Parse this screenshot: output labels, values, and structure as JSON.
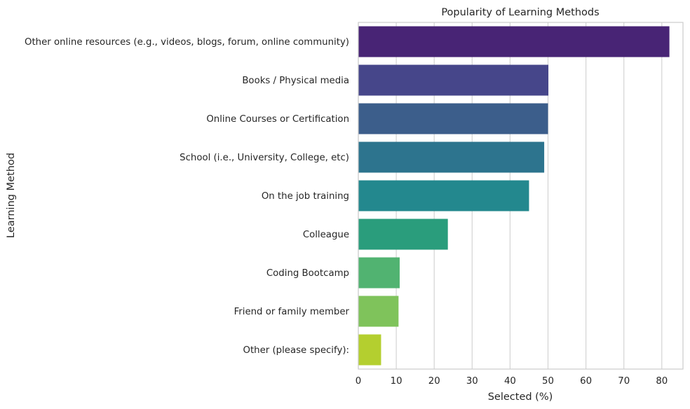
{
  "chart_data": {
    "type": "bar",
    "orientation": "horizontal",
    "title": "Popularity of Learning Methods",
    "xlabel": "Selected (%)",
    "ylabel": "Learning Method",
    "xlim": [
      0,
      85.5
    ],
    "x_ticks": [
      0,
      10,
      20,
      30,
      40,
      50,
      60,
      70,
      80
    ],
    "grid": "vertical",
    "legend": "none",
    "categories": [
      "Other online resources (e.g., videos, blogs, forum, online community)",
      "Books / Physical media",
      "Online Courses or Certification",
      "School (i.e., University, College, etc)",
      "On the job training",
      "Colleague",
      "Coding Bootcamp",
      "Friend or family member",
      "Other (please specify):"
    ],
    "values": [
      82,
      50.1,
      50,
      49,
      45,
      23.6,
      10.9,
      10.6,
      6
    ],
    "colors": [
      "#482475",
      "#46468a",
      "#3c5e8b",
      "#2d748e",
      "#23888e",
      "#2a9d7c",
      "#51b371",
      "#7fc35b",
      "#b4cf2f"
    ]
  }
}
